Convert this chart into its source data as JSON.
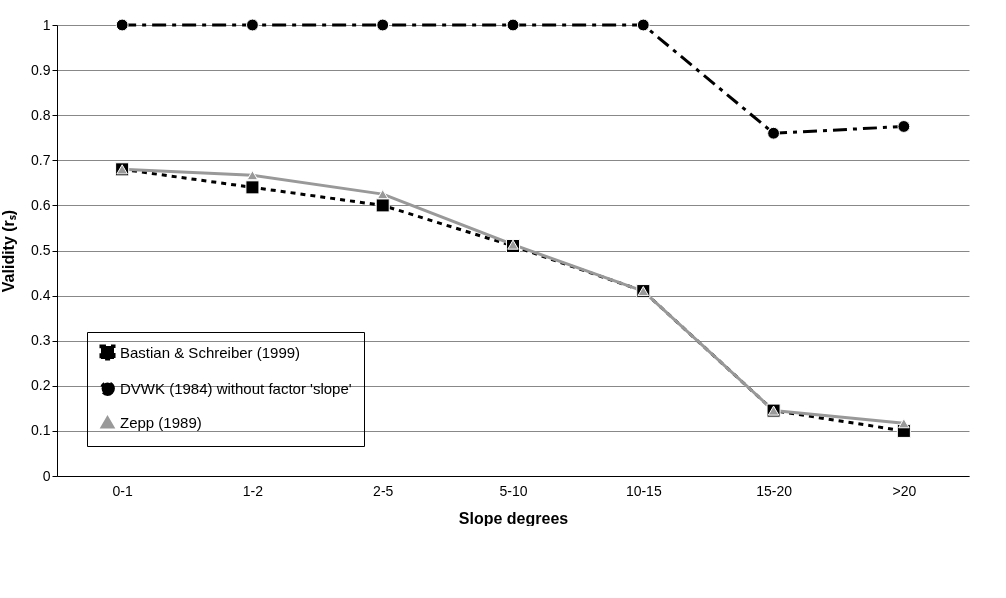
{
  "chart_data": {
    "type": "line",
    "xlabel": "Slope degrees",
    "ylabel": "Validity (rₛ)",
    "categories": [
      "0-1",
      "1-2",
      "2-5",
      "5-10",
      "10-15",
      "15-20",
      ">20"
    ],
    "series": [
      {
        "name": "Bastian & Schreiber (1999)",
        "color": "#000000",
        "marker": "square",
        "line_style": "dotted",
        "values": [
          0.68,
          0.64,
          0.6,
          0.51,
          0.41,
          0.145,
          0.1
        ]
      },
      {
        "name": "DVWK (1984) without factor 'slope'",
        "color": "#000000",
        "marker": "circle",
        "line_style": "dashed",
        "values": [
          1,
          1,
          1,
          1,
          1,
          0.76,
          0.775
        ]
      },
      {
        "name": "Zepp (1989)",
        "color": "#999999",
        "marker": "triangle",
        "line_style": "solid",
        "values": [
          0.68,
          0.667,
          0.625,
          0.513,
          0.41,
          0.145,
          0.117
        ]
      }
    ],
    "ylim": [
      0,
      1
    ],
    "yticks": [
      0,
      0.1,
      0.2,
      0.3,
      0.4,
      0.5,
      0.6,
      0.7,
      0.8,
      0.9,
      1
    ],
    "grid": "y",
    "legend": "bottom left"
  }
}
